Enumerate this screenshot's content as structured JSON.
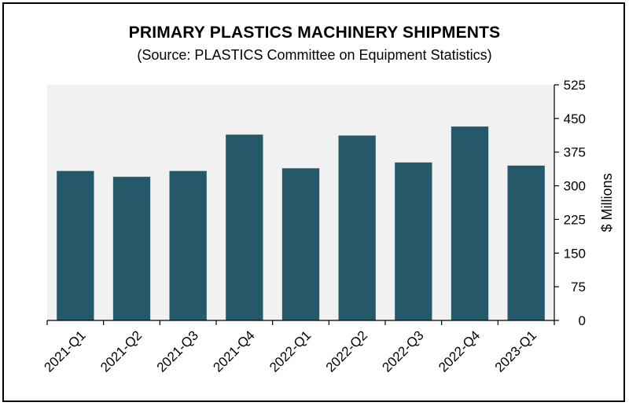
{
  "chart_data": {
    "type": "bar",
    "title": "PRIMARY PLASTICS MACHINERY SHIPMENTS",
    "subtitle": "(Source: PLASTICS Committee on Equipment Statistics)",
    "categories": [
      "2021-Q1",
      "2021-Q2",
      "2021-Q3",
      "2021-Q4",
      "2022-Q1",
      "2022-Q2",
      "2022-Q3",
      "2022-Q4",
      "2023-Q1"
    ],
    "values": [
      333,
      320,
      333,
      414,
      339,
      412,
      352,
      432,
      345
    ],
    "xlabel": "",
    "ylabel": "$ Millions",
    "ylim": [
      0,
      525
    ],
    "yticks": [
      "0",
      "75",
      "150",
      "225",
      "300",
      "375",
      "450",
      "525"
    ],
    "y_axis_side": "right",
    "grid": false,
    "legend": "none",
    "colors": {
      "bar": "#255868",
      "plot_background": "#f1f1f1"
    }
  }
}
